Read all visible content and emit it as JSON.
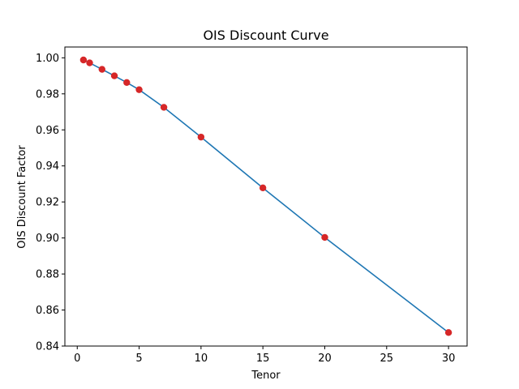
{
  "chart_data": {
    "type": "line",
    "title": "OIS Discount Curve",
    "xlabel": "Tenor",
    "ylabel": "OIS Discount Factor",
    "xlim": [
      -1.0,
      31.5
    ],
    "ylim": [
      0.84,
      1.006
    ],
    "xticks": [
      0,
      5,
      10,
      15,
      20,
      25,
      30
    ],
    "yticks": [
      0.84,
      0.86,
      0.88,
      0.9,
      0.92,
      0.94,
      0.96,
      0.98,
      1.0
    ],
    "xtick_labels": [
      "0",
      "5",
      "10",
      "15",
      "20",
      "25",
      "30"
    ],
    "ytick_labels": [
      "0.84",
      "0.86",
      "0.88",
      "0.90",
      "0.92",
      "0.94",
      "0.96",
      "0.98",
      "1.00"
    ],
    "grid": false,
    "series": [
      {
        "x": [
          0.5,
          1,
          2,
          3,
          4,
          5,
          7,
          10,
          15,
          20,
          30
        ],
        "y": [
          0.9988,
          0.9972,
          0.9936,
          0.99,
          0.9863,
          0.9823,
          0.9725,
          0.956,
          0.9278,
          0.9003,
          0.8475
        ],
        "line_color": "#1f77b4",
        "marker_color": "#d62728"
      }
    ]
  }
}
